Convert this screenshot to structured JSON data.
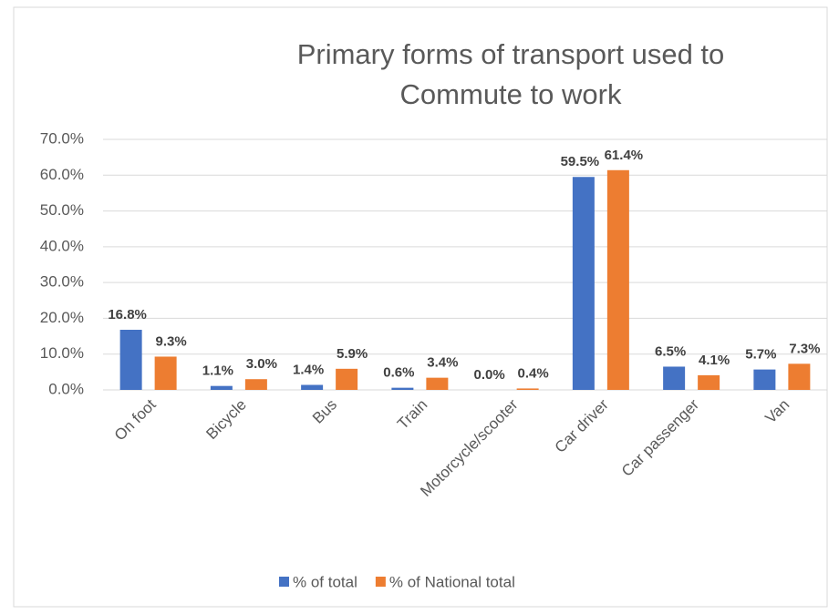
{
  "chart_data": {
    "type": "bar",
    "title": "Primary forms of transport used to Commute to work",
    "categories": [
      "On foot",
      "Bicycle",
      "Bus",
      "Train",
      "Motorcycle/scooter",
      "Car driver",
      "Car passenger",
      "Van"
    ],
    "series": [
      {
        "name": "% of total",
        "color": "#4472c4",
        "values": [
          16.8,
          1.1,
          1.4,
          0.6,
          0.0,
          59.5,
          6.5,
          5.7
        ],
        "value_labels": [
          "16.8%",
          "1.1%",
          "1.4%",
          "0.6%",
          "0.0%",
          "59.5%",
          "6.5%",
          "5.7%"
        ]
      },
      {
        "name": "% of National total",
        "color": "#ed7d31",
        "values": [
          9.3,
          3.0,
          5.9,
          3.4,
          0.4,
          61.4,
          4.1,
          7.3
        ],
        "value_labels": [
          "9.3%",
          "3.0%",
          "5.9%",
          "3.4%",
          "0.4%",
          "61.4%",
          "4.1%",
          "7.3%"
        ]
      }
    ],
    "ylim": [
      0,
      70
    ],
    "yticks": [
      {
        "value": 0,
        "label": "0.0%"
      },
      {
        "value": 10,
        "label": "10.0%"
      },
      {
        "value": 20,
        "label": "20.0%"
      },
      {
        "value": 30,
        "label": "30.0%"
      },
      {
        "value": 40,
        "label": "40.0%"
      },
      {
        "value": 50,
        "label": "50.0%"
      },
      {
        "value": 60,
        "label": "60.0%"
      },
      {
        "value": 70,
        "label": "70.0%"
      }
    ],
    "grid": true,
    "legend": "bottom"
  }
}
